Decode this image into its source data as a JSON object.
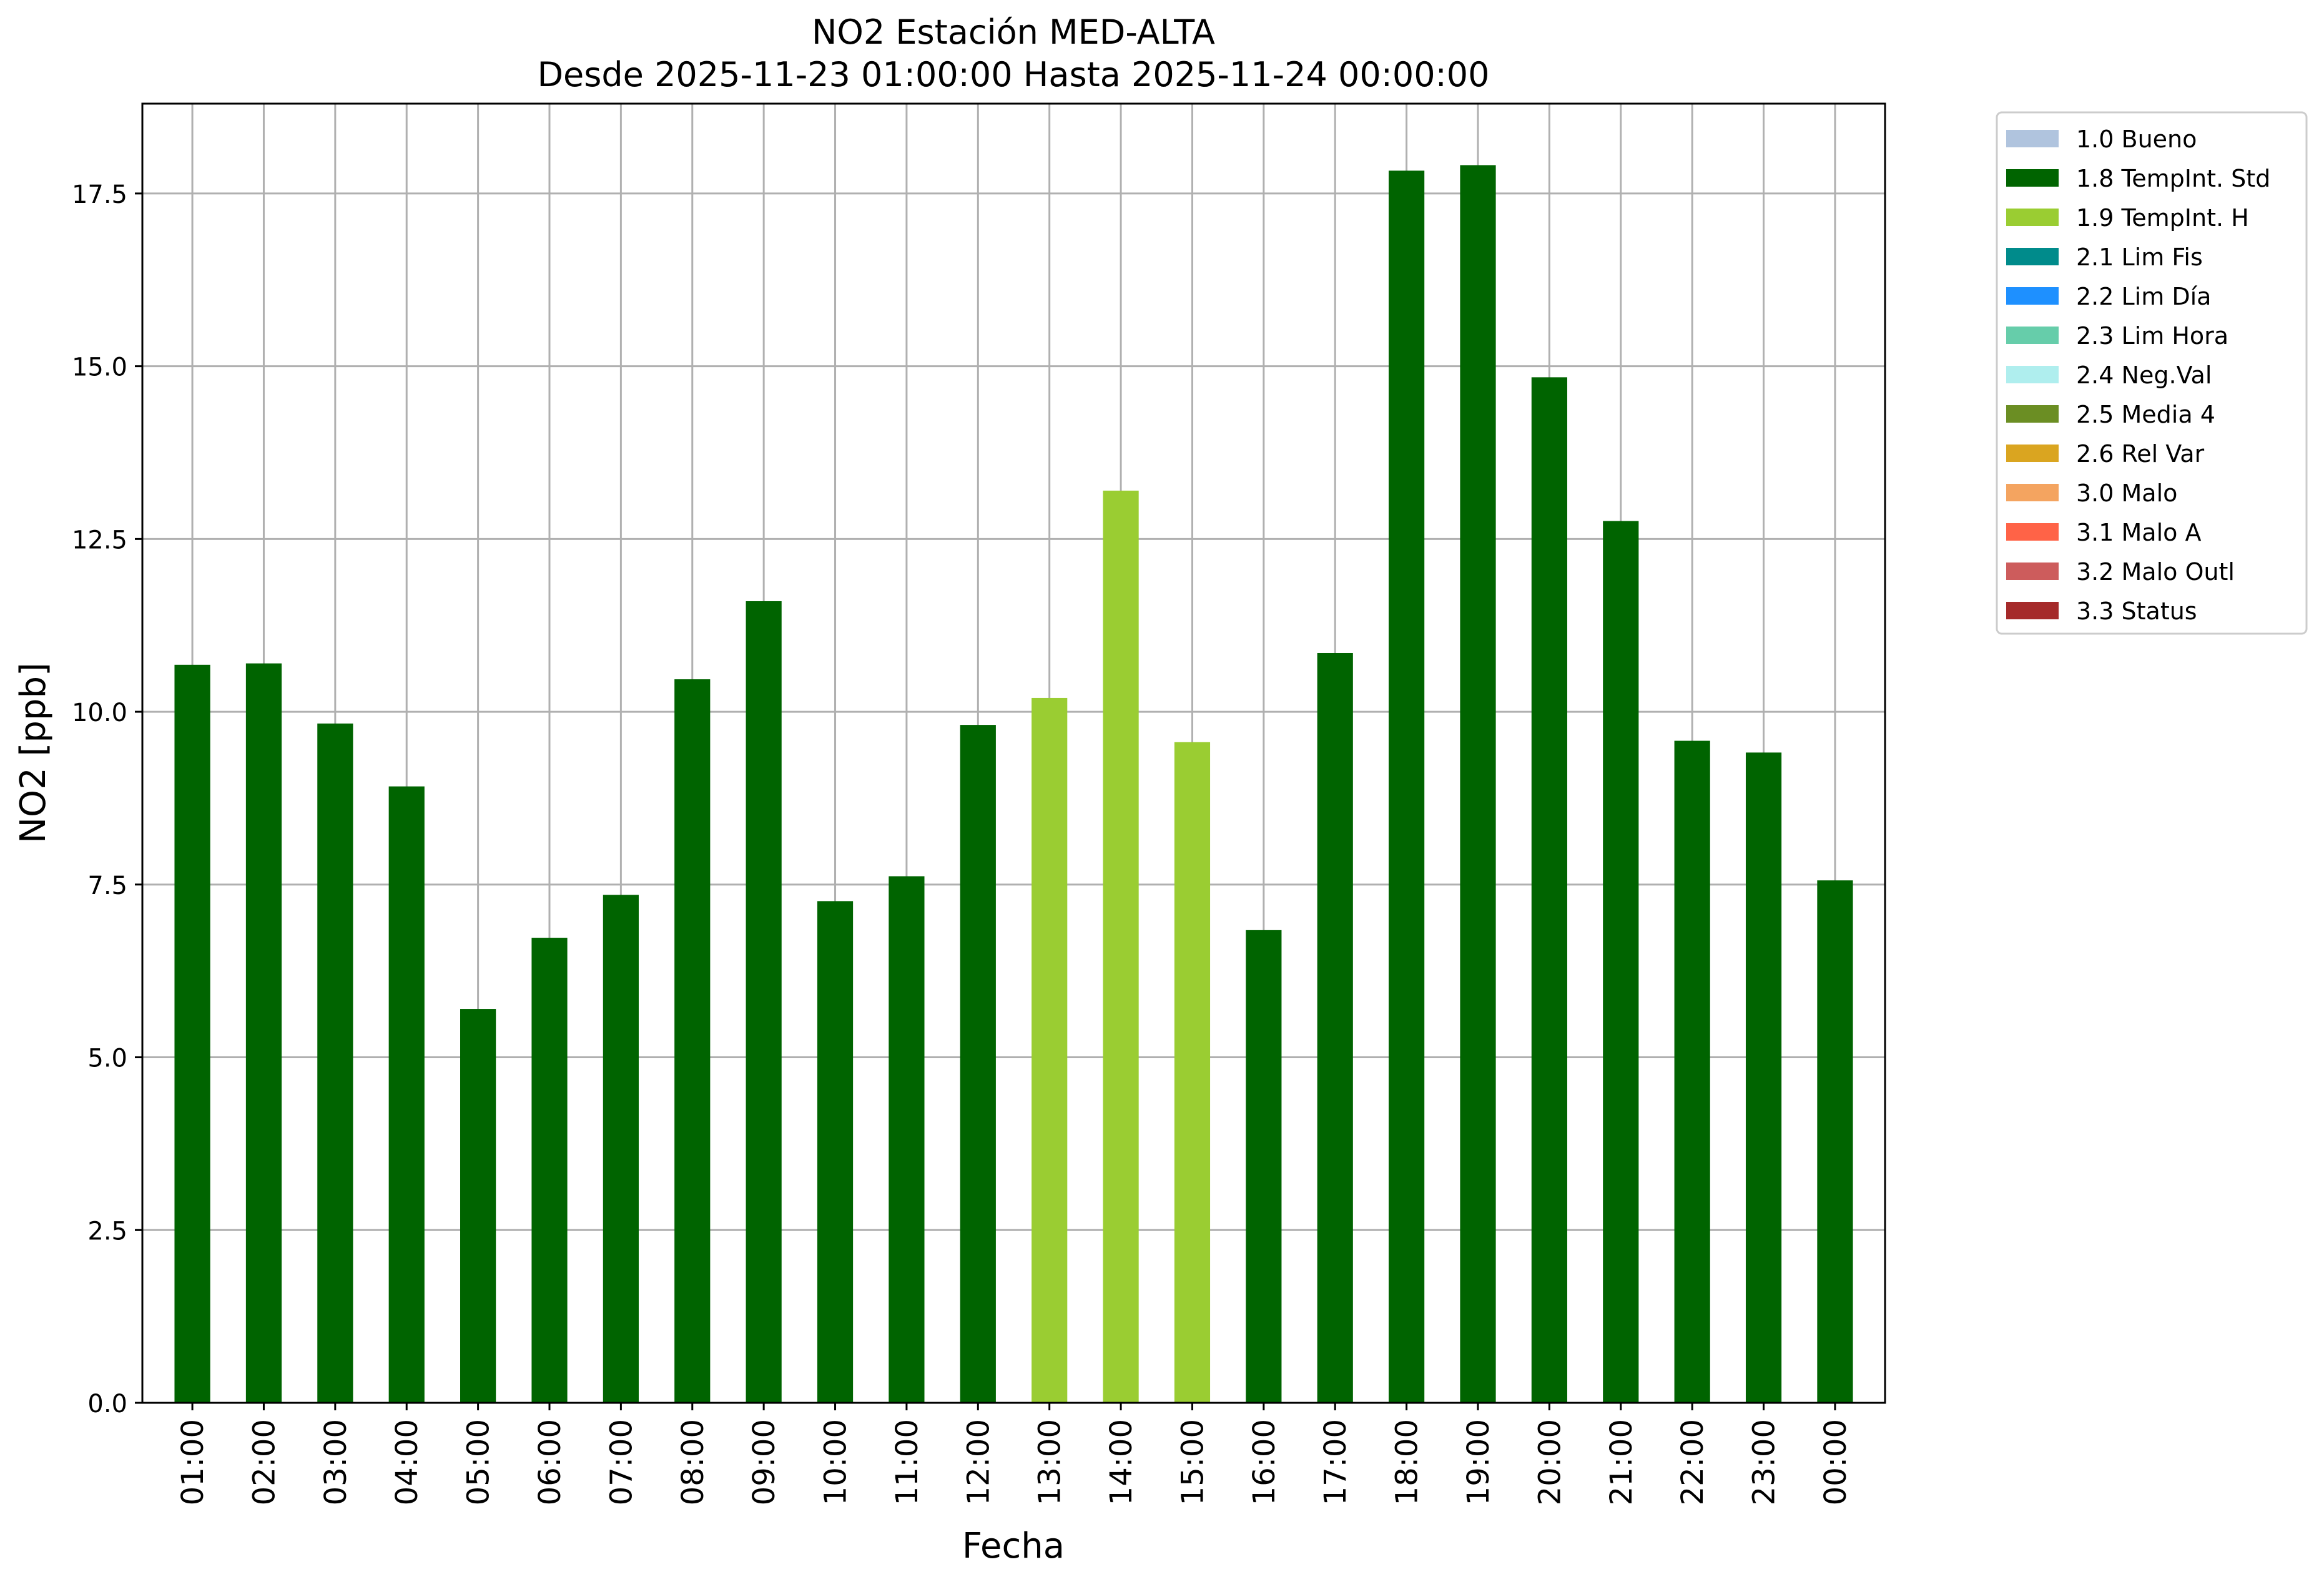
{
  "chart_data": {
    "type": "bar",
    "title": "NO2 Estación MED-ALTA",
    "subtitle": "Desde 2025-11-23 01:00:00 Hasta 2025-11-24 00:00:00",
    "xlabel": "Fecha",
    "ylabel": "NO2 [ppb]",
    "ylim": [
      0,
      18.8
    ],
    "yticks": [
      "0.0",
      "2.5",
      "5.0",
      "7.5",
      "10.0",
      "12.5",
      "15.0",
      "17.5"
    ],
    "grid": true,
    "legend_position": "outside-top-right",
    "categories": [
      "01:00",
      "02:00",
      "03:00",
      "04:00",
      "05:00",
      "06:00",
      "07:00",
      "08:00",
      "09:00",
      "10:00",
      "11:00",
      "12:00",
      "13:00",
      "14:00",
      "15:00",
      "16:00",
      "17:00",
      "18:00",
      "19:00",
      "20:00",
      "21:00",
      "22:00",
      "23:00",
      "00:00"
    ],
    "values": [
      10.68,
      10.7,
      9.83,
      8.92,
      5.7,
      6.73,
      7.35,
      10.47,
      11.6,
      7.26,
      7.62,
      9.81,
      10.2,
      13.2,
      9.56,
      6.84,
      10.85,
      17.83,
      17.91,
      14.84,
      12.76,
      9.58,
      9.41,
      7.56
    ],
    "flags": [
      "1.8",
      "1.8",
      "1.8",
      "1.8",
      "1.8",
      "1.8",
      "1.8",
      "1.8",
      "1.8",
      "1.8",
      "1.8",
      "1.8",
      "1.9",
      "1.9",
      "1.9",
      "1.8",
      "1.8",
      "1.8",
      "1.8",
      "1.8",
      "1.8",
      "1.8",
      "1.8",
      "1.8"
    ],
    "legend": [
      {
        "code": "1.0",
        "label": "1.0 Bueno",
        "color": "#b0c4de"
      },
      {
        "code": "1.8",
        "label": "1.8 TempInt. Std",
        "color": "#006400"
      },
      {
        "code": "1.9",
        "label": "1.9 TempInt. H",
        "color": "#9acd32"
      },
      {
        "code": "2.1",
        "label": "2.1 Lim Fis",
        "color": "#008b8b"
      },
      {
        "code": "2.2",
        "label": "2.2 Lim Día",
        "color": "#1e90ff"
      },
      {
        "code": "2.3",
        "label": "2.3 Lim Hora",
        "color": "#66cdaa"
      },
      {
        "code": "2.4",
        "label": "2.4 Neg.Val",
        "color": "#afeeee"
      },
      {
        "code": "2.5",
        "label": "2.5 Media 4",
        "color": "#6b8e23"
      },
      {
        "code": "2.6",
        "label": "2.6 Rel Var",
        "color": "#daa520"
      },
      {
        "code": "3.0",
        "label": "3.0 Malo",
        "color": "#f4a460"
      },
      {
        "code": "3.1",
        "label": "3.1 Malo A",
        "color": "#ff6347"
      },
      {
        "code": "3.2",
        "label": "3.2 Malo Outl",
        "color": "#cd5c5c"
      },
      {
        "code": "3.3",
        "label": "3.3 Status",
        "color": "#a52a2a"
      }
    ]
  }
}
